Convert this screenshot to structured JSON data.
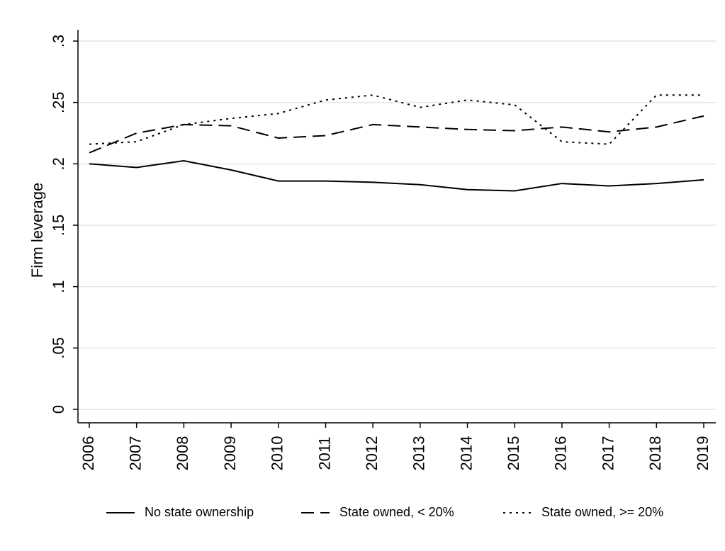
{
  "chart_data": {
    "type": "line",
    "y_label": "Firm leverage",
    "categories": [
      "2006",
      "2007",
      "2008",
      "2009",
      "2010",
      "2011",
      "2012",
      "2013",
      "2014",
      "2015",
      "2016",
      "2017",
      "2018",
      "2019"
    ],
    "series": [
      {
        "name": "No state ownership",
        "color": "#000000",
        "dash": "solid",
        "values": [
          0.2,
          0.197,
          0.2025,
          0.195,
          0.186,
          0.186,
          0.185,
          0.183,
          0.179,
          0.178,
          0.184,
          0.182,
          0.184,
          0.187
        ]
      },
      {
        "name": "State owned, < 20%",
        "color": "#000000",
        "dash": "dashed",
        "values": [
          0.209,
          0.225,
          0.232,
          0.231,
          0.221,
          0.223,
          0.232,
          0.23,
          0.228,
          0.227,
          0.23,
          0.226,
          0.23,
          0.239
        ]
      },
      {
        "name": "State owned, >= 20%",
        "color": "#000000",
        "dash": "dotted",
        "values": [
          0.216,
          0.218,
          0.232,
          0.237,
          0.241,
          0.252,
          0.256,
          0.246,
          0.252,
          0.248,
          0.218,
          0.216,
          0.256,
          0.256
        ]
      }
    ],
    "ylim": [
      0,
      0.3
    ],
    "yticks": [
      0,
      {
        "value": 0.05,
        "label": ".05"
      },
      {
        "value": 0.1,
        "label": ".1"
      },
      {
        "value": 0.15,
        "label": ".15"
      },
      {
        "value": 0.2,
        "label": ".2"
      },
      {
        "value": 0.25,
        "label": ".25"
      },
      {
        "value": 0.3,
        "label": ".3"
      }
    ],
    "grid": true,
    "legend": "bottom"
  }
}
